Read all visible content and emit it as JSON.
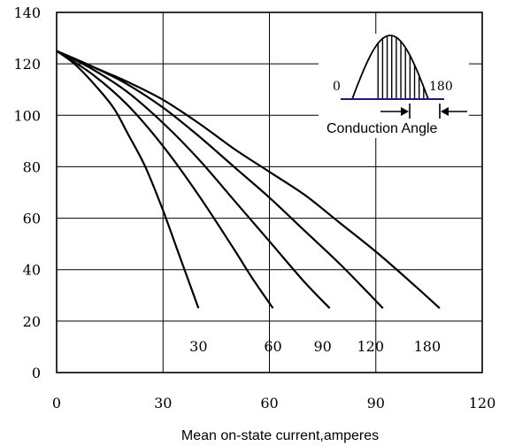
{
  "chart_data": {
    "type": "line",
    "title": "",
    "xlabel": "Mean on-state current,amperes",
    "ylabel": "",
    "xlim": [
      0,
      120
    ],
    "ylim": [
      0,
      140
    ],
    "grid": true,
    "x_ticks": [
      0,
      30,
      60,
      90,
      120
    ],
    "y_ticks": [
      0,
      20,
      40,
      60,
      80,
      100,
      120,
      140
    ],
    "series": [
      {
        "name": "30",
        "x": [
          0,
          5,
          10,
          16,
          20,
          25,
          30,
          35,
          40
        ],
        "y": [
          125,
          120,
          113,
          103,
          93,
          80,
          63,
          44,
          25
        ]
      },
      {
        "name": "60",
        "x": [
          0,
          10,
          20,
          30,
          40,
          50,
          55,
          61
        ],
        "y": [
          125,
          116,
          104,
          88,
          69,
          48,
          37,
          25
        ]
      },
      {
        "name": "90",
        "x": [
          0,
          10,
          20,
          30,
          40,
          50,
          60,
          70,
          77
        ],
        "y": [
          125,
          118,
          109,
          97,
          83,
          67,
          51,
          35,
          25
        ]
      },
      {
        "name": "120",
        "x": [
          0,
          10,
          20,
          30,
          40,
          50,
          60,
          70,
          80,
          92
        ],
        "y": [
          125,
          119,
          112,
          103,
          92,
          80,
          68,
          55,
          42,
          25
        ]
      },
      {
        "name": "180",
        "x": [
          0,
          10,
          20,
          30,
          40,
          50,
          60,
          70,
          80,
          90,
          100,
          108
        ],
        "y": [
          125,
          119,
          113,
          106,
          97,
          87,
          78,
          69,
          58,
          47,
          35,
          25
        ]
      }
    ],
    "inset": {
      "label_start": "0",
      "label_end": "180",
      "caption": "Conduction Angle"
    }
  }
}
